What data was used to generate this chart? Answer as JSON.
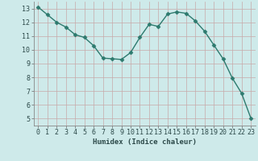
{
  "x": [
    0,
    1,
    2,
    3,
    4,
    5,
    6,
    7,
    8,
    9,
    10,
    11,
    12,
    13,
    14,
    15,
    16,
    17,
    18,
    19,
    20,
    21,
    22,
    23
  ],
  "y": [
    13.1,
    12.55,
    12.0,
    11.65,
    11.1,
    10.9,
    10.3,
    9.4,
    9.35,
    9.3,
    9.8,
    10.9,
    11.85,
    11.7,
    12.6,
    12.75,
    12.65,
    12.1,
    11.35,
    10.35,
    9.35,
    7.95,
    6.85,
    5.05
  ],
  "line_color": "#2d7a6e",
  "marker": "D",
  "marker_size": 2.5,
  "bg_color": "#ceeaea",
  "grid_h_color": "#c8a8a8",
  "grid_v_color": "#c8a8a8",
  "xlabel": "Humidex (Indice chaleur)",
  "ylim": [
    4.5,
    13.5
  ],
  "xlim": [
    -0.5,
    23.5
  ],
  "yticks": [
    5,
    6,
    7,
    8,
    9,
    10,
    11,
    12,
    13
  ],
  "xticks": [
    0,
    1,
    2,
    3,
    4,
    5,
    6,
    7,
    8,
    9,
    10,
    11,
    12,
    13,
    14,
    15,
    16,
    17,
    18,
    19,
    20,
    21,
    22,
    23
  ],
  "label_fontsize": 6.5,
  "tick_fontsize": 6.0
}
